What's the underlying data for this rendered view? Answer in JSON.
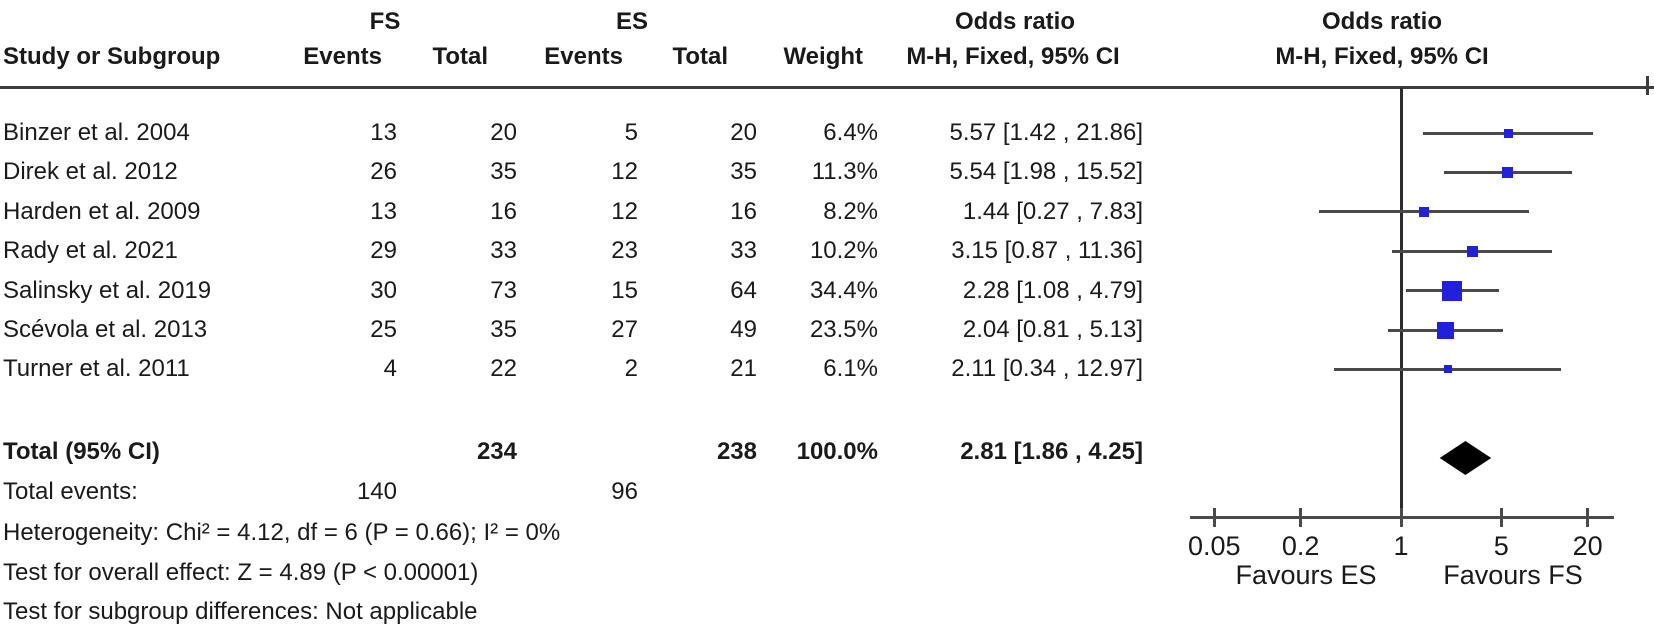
{
  "table": {
    "header": {
      "group_fs": "FS",
      "group_es": "ES",
      "study": "Study or Subgroup",
      "events": "Events",
      "total": "Total",
      "weight": "Weight",
      "or_line1": "Odds ratio",
      "or_line2": "M-H, Fixed, 95% CI",
      "plot_line1": "Odds ratio",
      "plot_line2": "M-H, Fixed, 95% CI"
    },
    "rows": [
      {
        "study": "Binzer et al. 2004",
        "fs_events": "13",
        "fs_total": "20",
        "es_events": "5",
        "es_total": "20",
        "weight": "6.4%",
        "or_ci": "5.57 [1.42 , 21.86]"
      },
      {
        "study": "Direk et al. 2012",
        "fs_events": "26",
        "fs_total": "35",
        "es_events": "12",
        "es_total": "35",
        "weight": "11.3%",
        "or_ci": "5.54 [1.98 , 15.52]"
      },
      {
        "study": "Harden et al. 2009",
        "fs_events": "13",
        "fs_total": "16",
        "es_events": "12",
        "es_total": "16",
        "weight": "8.2%",
        "or_ci": "1.44 [0.27 , 7.83]"
      },
      {
        "study": "Rady et al. 2021",
        "fs_events": "29",
        "fs_total": "33",
        "es_events": "23",
        "es_total": "33",
        "weight": "10.2%",
        "or_ci": "3.15 [0.87 , 11.36]"
      },
      {
        "study": "Salinsky et al. 2019",
        "fs_events": "30",
        "fs_total": "73",
        "es_events": "15",
        "es_total": "64",
        "weight": "34.4%",
        "or_ci": "2.28 [1.08 , 4.79]"
      },
      {
        "study": "Scévola et al. 2013",
        "fs_events": "25",
        "fs_total": "35",
        "es_events": "27",
        "es_total": "49",
        "weight": "23.5%",
        "or_ci": "2.04 [0.81 , 5.13]"
      },
      {
        "study": "Turner et al. 2011",
        "fs_events": "4",
        "fs_total": "22",
        "es_events": "2",
        "es_total": "21",
        "weight": "6.1%",
        "or_ci": "2.11 [0.34 , 12.97]"
      }
    ],
    "total_row": {
      "label": "Total (95% CI)",
      "fs_total": "234",
      "es_total": "238",
      "weight": "100.0%",
      "or_ci": "2.81 [1.86 , 4.25]"
    },
    "total_events": {
      "label": "Total events:",
      "fs": "140",
      "es": "96"
    },
    "footer": {
      "heterogeneity": "Heterogeneity: Chi² = 4.12, df = 6 (P = 0.66); I² = 0%",
      "overall_effect": "Test for overall effect: Z = 4.89 (P < 0.00001)",
      "subgroup_diff": "Test for subgroup differences: Not applicable"
    }
  },
  "chart_data": {
    "type": "scatter",
    "subtype": "forest-plot",
    "effect_measure": "Odds ratio, M-H, Fixed, 95% CI",
    "x_scale": "log10",
    "x_range": [
      0.034,
      30
    ],
    "null_value": 1,
    "tick_values": [
      0.05,
      0.2,
      1,
      5,
      20
    ],
    "tick_labels": [
      "0.05",
      "0.2",
      "1",
      "5",
      "20"
    ],
    "favours_left": "Favours ES",
    "favours_right": "Favours FS",
    "studies": [
      {
        "name": "Binzer et al. 2004",
        "or": 5.57,
        "ci_low": 1.42,
        "ci_high": 21.86,
        "weight_pct": 6.4
      },
      {
        "name": "Direk et al. 2012",
        "or": 5.54,
        "ci_low": 1.98,
        "ci_high": 15.52,
        "weight_pct": 11.3
      },
      {
        "name": "Harden et al. 2009",
        "or": 1.44,
        "ci_low": 0.27,
        "ci_high": 7.83,
        "weight_pct": 8.2
      },
      {
        "name": "Rady et al. 2021",
        "or": 3.15,
        "ci_low": 0.87,
        "ci_high": 11.36,
        "weight_pct": 10.2
      },
      {
        "name": "Salinsky et al. 2019",
        "or": 2.28,
        "ci_low": 1.08,
        "ci_high": 4.79,
        "weight_pct": 34.4
      },
      {
        "name": "Scévola et al. 2013",
        "or": 2.04,
        "ci_low": 0.81,
        "ci_high": 5.13,
        "weight_pct": 23.5
      },
      {
        "name": "Turner et al. 2011",
        "or": 2.11,
        "ci_low": 0.34,
        "ci_high": 12.97,
        "weight_pct": 6.1
      }
    ],
    "total": {
      "or": 2.81,
      "ci_low": 1.86,
      "ci_high": 4.25,
      "weight_pct": 100.0
    },
    "marker_color": "#2020dd",
    "diamond_color": "#000000",
    "line_color": "#4a4a4a"
  }
}
